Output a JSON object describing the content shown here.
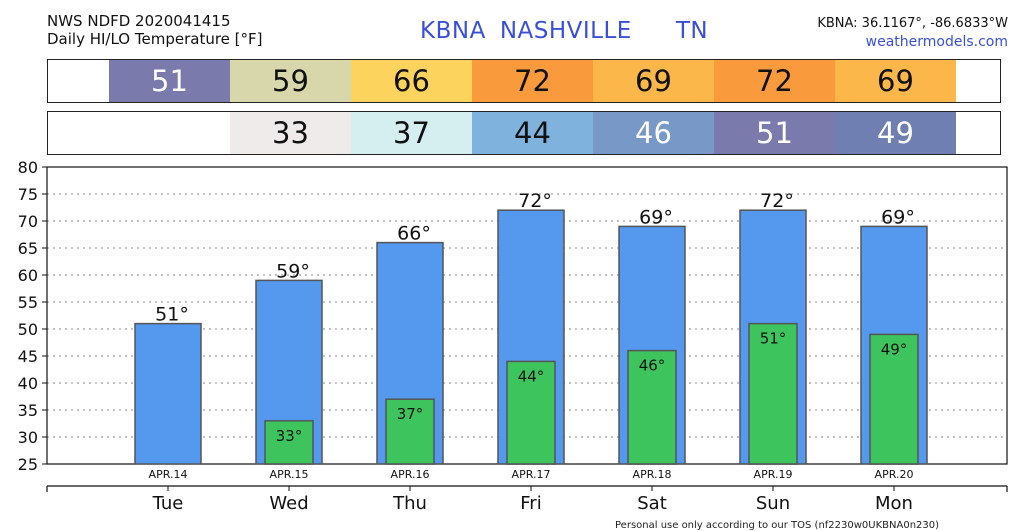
{
  "header": {
    "product": "NWS NDFD 2020041415",
    "subtitle": "Daily HI/LO Temperature [°F]",
    "station": "KBNA",
    "city": "NASHVILLE",
    "state": "TN",
    "coords": "KBNA: 36.1167°, -86.6833°W",
    "site": "weathermodels.com"
  },
  "hi_band": [
    {
      "text": "51",
      "color": "#7a7aad",
      "text_color": "#ffffff"
    },
    {
      "text": "59",
      "color": "#d7d7ab",
      "text_color": "#111111"
    },
    {
      "text": "66",
      "color": "#fbd35d",
      "text_color": "#111111"
    },
    {
      "text": "72",
      "color": "#f99b3c",
      "text_color": "#111111"
    },
    {
      "text": "69",
      "color": "#fcb74b",
      "text_color": "#111111"
    },
    {
      "text": "72",
      "color": "#f99b3c",
      "text_color": "#111111"
    },
    {
      "text": "69",
      "color": "#fcb74b",
      "text_color": "#111111"
    }
  ],
  "lo_band": [
    {
      "text": "",
      "color": "#ffffff",
      "text_color": "#111111"
    },
    {
      "text": "33",
      "color": "#efebea",
      "text_color": "#111111"
    },
    {
      "text": "37",
      "color": "#d5eef0",
      "text_color": "#111111"
    },
    {
      "text": "44",
      "color": "#7fb2dd",
      "text_color": "#111111"
    },
    {
      "text": "46",
      "color": "#7898c8",
      "text_color": "#ffffff"
    },
    {
      "text": "51",
      "color": "#7a7aad",
      "text_color": "#ffffff"
    },
    {
      "text": "49",
      "color": "#6f7fb2",
      "text_color": "#ffffff"
    }
  ],
  "chart_data": {
    "type": "bar",
    "categories": [
      "Tue",
      "Wed",
      "Thu",
      "Fri",
      "Sat",
      "Sun",
      "Mon"
    ],
    "dates": [
      "APR.14",
      "APR.15",
      "APR.16",
      "APR.17",
      "APR.18",
      "APR.19",
      "APR.20"
    ],
    "series": [
      {
        "name": "HI",
        "values": [
          51,
          59,
          66,
          72,
          69,
          72,
          69
        ],
        "color": "#5599ee"
      },
      {
        "name": "LO",
        "values": [
          null,
          33,
          37,
          44,
          46,
          51,
          49
        ],
        "color": "#3dc45d"
      }
    ],
    "hi_labels": [
      "51°",
      "59°",
      "66°",
      "72°",
      "69°",
      "72°",
      "69°"
    ],
    "lo_labels": [
      "",
      "33°",
      "37°",
      "44°",
      "46°",
      "51°",
      "49°"
    ],
    "ylim": [
      25,
      80
    ],
    "yticks": [
      25,
      30,
      35,
      40,
      45,
      50,
      55,
      60,
      65,
      70,
      75,
      80
    ],
    "grid": true
  },
  "footer": "Personal use only according to our TOS (nf2230w0UKBNA0n230)"
}
